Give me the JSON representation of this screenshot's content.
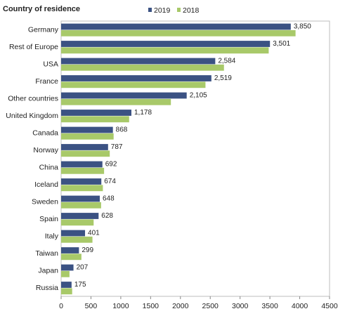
{
  "chart_data": {
    "type": "bar",
    "orientation": "horizontal",
    "title": "Country of residence",
    "categories": [
      "Germany",
      "Rest of Europe",
      "USA",
      "France",
      "Other countries",
      "United Kingdom",
      "Canada",
      "Norway",
      "China",
      "Iceland",
      "Sweden",
      "Spain",
      "Italy",
      "Taiwan",
      "Japan",
      "Russia"
    ],
    "series": [
      {
        "name": "2019",
        "color": "#3b5283",
        "values": [
          3850,
          3501,
          2584,
          2519,
          2105,
          1178,
          868,
          787,
          692,
          674,
          648,
          628,
          401,
          299,
          207,
          175
        ]
      },
      {
        "name": "2018",
        "color": "#a8c969",
        "values": [
          3930,
          3480,
          2730,
          2420,
          1840,
          1140,
          880,
          815,
          720,
          700,
          670,
          545,
          525,
          340,
          140,
          185
        ]
      }
    ],
    "data_labels": [
      "3,850",
      "3,501",
      "2,584",
      "2,519",
      "2,105",
      "1,178",
      "868",
      "787",
      "692",
      "674",
      "648",
      "628",
      "401",
      "299",
      "207",
      "175"
    ],
    "x_ticks": [
      "0",
      "500",
      "1000",
      "1500",
      "2000",
      "2500",
      "3000",
      "3500",
      "4000",
      "4500"
    ],
    "xlim": [
      0,
      4500
    ],
    "legend_position": "top",
    "grid": false
  }
}
